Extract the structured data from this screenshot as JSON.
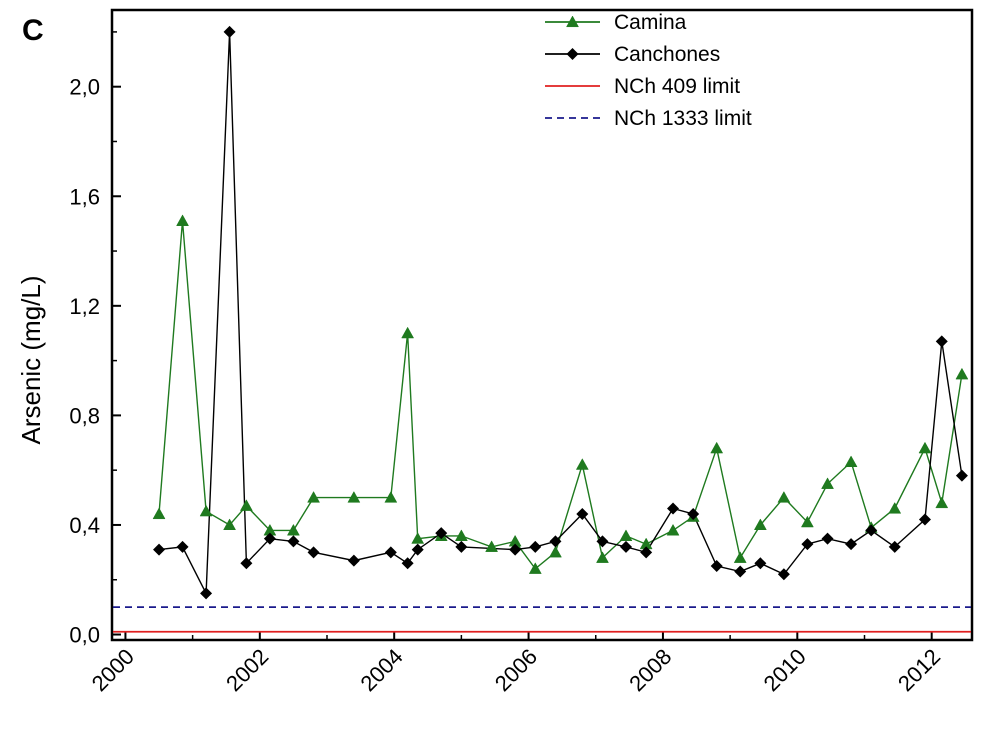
{
  "panel_letter": "C",
  "chart_data": {
    "type": "line",
    "title": "",
    "ylabel": "Arsenic (mg/L)",
    "xlabel": "",
    "xlim": [
      1999.8,
      2012.6
    ],
    "ylim": [
      -0.02,
      2.28
    ],
    "xticks": [
      2000,
      2002,
      2004,
      2006,
      2008,
      2010,
      2012
    ],
    "xtick_labels": [
      "2000",
      "2002",
      "2004",
      "2006",
      "2008",
      "2010",
      "2012"
    ],
    "yticks": [
      0.0,
      0.4,
      0.8,
      1.2,
      1.6,
      2.0
    ],
    "ytick_labels": [
      "0,0",
      "0,4",
      "0,8",
      "1,2",
      "1,6",
      "2,0"
    ],
    "legend_position": "top-center",
    "series": [
      {
        "name": "Camina",
        "color": "#1f7a1f",
        "marker": "triangle",
        "x": [
          2000.5,
          2000.85,
          2001.2,
          2001.55,
          2001.8,
          2002.15,
          2002.5,
          2002.8,
          2003.4,
          2003.95,
          2004.2,
          2004.35,
          2004.7,
          2005.0,
          2005.45,
          2005.8,
          2006.1,
          2006.4,
          2006.8,
          2007.1,
          2007.45,
          2007.75,
          2008.15,
          2008.45,
          2008.8,
          2009.15,
          2009.45,
          2009.8,
          2010.15,
          2010.45,
          2010.8,
          2011.1,
          2011.45,
          2011.9,
          2012.15,
          2012.45
        ],
        "y": [
          0.44,
          1.51,
          0.45,
          0.4,
          0.47,
          0.38,
          0.38,
          0.5,
          0.5,
          0.5,
          1.1,
          0.35,
          0.36,
          0.36,
          0.32,
          0.34,
          0.24,
          0.3,
          0.62,
          0.28,
          0.36,
          0.33,
          0.38,
          0.43,
          0.68,
          0.28,
          0.4,
          0.5,
          0.41,
          0.55,
          0.63,
          0.39,
          0.46,
          0.68,
          0.48,
          0.95
        ]
      },
      {
        "name": "Canchones",
        "color": "#000000",
        "marker": "diamond",
        "x": [
          2000.5,
          2000.85,
          2001.2,
          2001.55,
          2001.8,
          2002.15,
          2002.5,
          2002.8,
          2003.4,
          2003.95,
          2004.2,
          2004.35,
          2004.7,
          2005.0,
          2005.8,
          2006.1,
          2006.4,
          2006.8,
          2007.1,
          2007.45,
          2007.75,
          2008.15,
          2008.45,
          2008.8,
          2009.15,
          2009.45,
          2009.8,
          2010.15,
          2010.45,
          2010.8,
          2011.1,
          2011.45,
          2011.9,
          2012.15,
          2012.45
        ],
        "y": [
          0.31,
          0.32,
          0.15,
          2.2,
          0.26,
          0.35,
          0.34,
          0.3,
          0.27,
          0.3,
          0.26,
          0.31,
          0.37,
          0.32,
          0.31,
          0.32,
          0.34,
          0.44,
          0.34,
          0.32,
          0.3,
          0.46,
          0.44,
          0.25,
          0.23,
          0.26,
          0.22,
          0.33,
          0.35,
          0.33,
          0.38,
          0.32,
          0.42,
          1.07,
          0.58
        ]
      },
      {
        "name": "NCh 409 limit",
        "color": "#e02020",
        "style": "solid",
        "value": 0.01
      },
      {
        "name": "NCh 1333 limit",
        "color": "#1a1a8c",
        "style": "dashed",
        "value": 0.1
      }
    ]
  }
}
